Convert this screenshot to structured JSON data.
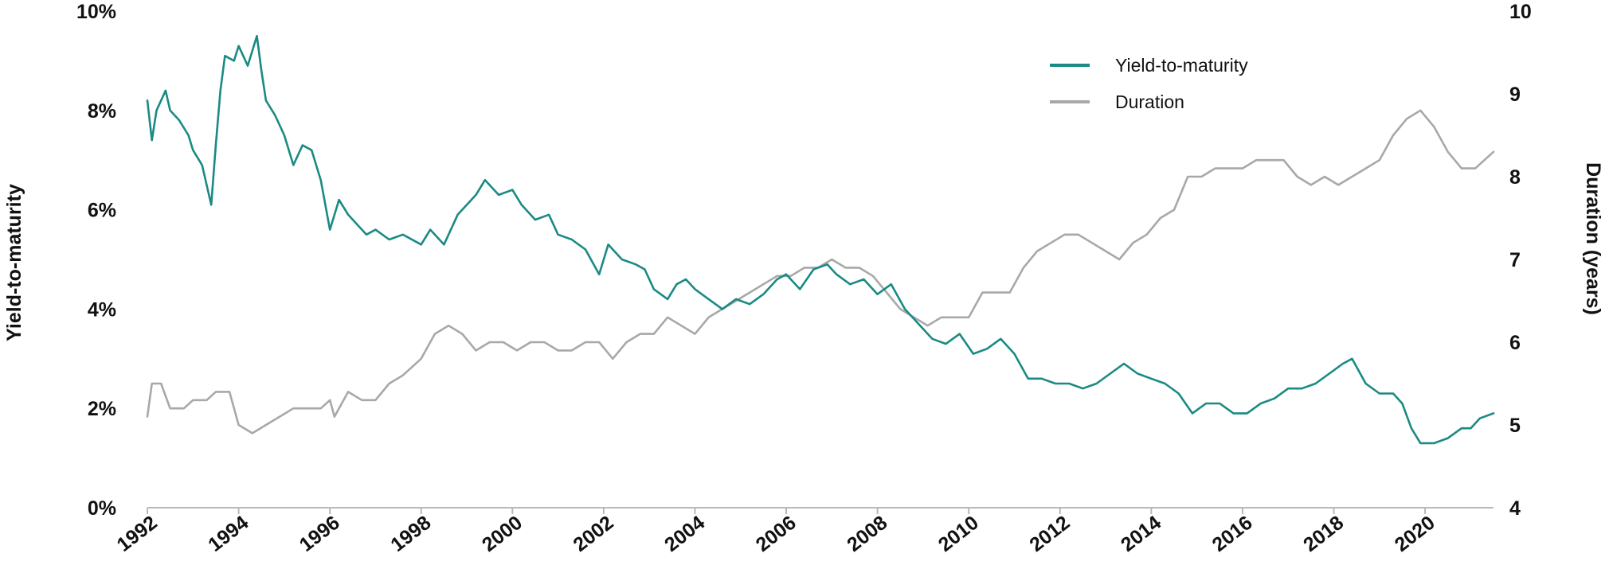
{
  "chart_data": {
    "type": "line",
    "title": "",
    "ylabel": "Yield-to-maturity",
    "y2label": "Duration (years)",
    "xlim": [
      1992,
      2021.5
    ],
    "ylim": [
      0,
      10
    ],
    "y2lim": [
      4,
      10
    ],
    "x_ticks": [
      "1992",
      "1994",
      "1996",
      "1998",
      "2000",
      "2002",
      "2004",
      "2006",
      "2008",
      "2010",
      "2012",
      "2014",
      "2016",
      "2018",
      "2020"
    ],
    "y_ticks": [
      "0%",
      "2%",
      "4%",
      "6%",
      "8%",
      "10%"
    ],
    "y2_ticks": [
      "4",
      "5",
      "6",
      "7",
      "8",
      "9",
      "10"
    ],
    "grid": false,
    "legend_position": "top-right",
    "series": [
      {
        "name": "Yield-to-maturity",
        "axis": "left",
        "color": "#1a8a84",
        "x": [
          1992.0,
          1992.1,
          1992.2,
          1992.4,
          1992.5,
          1992.7,
          1992.9,
          1993.0,
          1993.2,
          1993.4,
          1993.5,
          1993.6,
          1993.7,
          1993.9,
          1994.0,
          1994.2,
          1994.4,
          1994.5,
          1994.6,
          1994.8,
          1995.0,
          1995.2,
          1995.4,
          1995.6,
          1995.8,
          1996.0,
          1996.2,
          1996.4,
          1996.6,
          1996.8,
          1997.0,
          1997.3,
          1997.6,
          1998.0,
          1998.2,
          1998.5,
          1998.8,
          1999.2,
          1999.4,
          1999.7,
          2000.0,
          2000.2,
          2000.5,
          2000.8,
          2001.0,
          2001.3,
          2001.6,
          2001.9,
          2002.1,
          2002.4,
          2002.7,
          2002.9,
          2003.1,
          2003.4,
          2003.6,
          2003.8,
          2004.0,
          2004.3,
          2004.6,
          2004.9,
          2005.2,
          2005.5,
          2005.8,
          2006.0,
          2006.3,
          2006.6,
          2006.9,
          2007.1,
          2007.4,
          2007.7,
          2008.0,
          2008.3,
          2008.6,
          2008.9,
          2009.2,
          2009.5,
          2009.8,
          2010.1,
          2010.4,
          2010.7,
          2011.0,
          2011.3,
          2011.6,
          2011.9,
          2012.2,
          2012.5,
          2012.8,
          2013.1,
          2013.4,
          2013.7,
          2014.0,
          2014.3,
          2014.6,
          2014.9,
          2015.2,
          2015.5,
          2015.8,
          2016.1,
          2016.4,
          2016.7,
          2017.0,
          2017.3,
          2017.6,
          2017.9,
          2018.2,
          2018.4,
          2018.7,
          2019.0,
          2019.3,
          2019.5,
          2019.7,
          2019.9,
          2020.2,
          2020.5,
          2020.8,
          2021.0,
          2021.2,
          2021.5
        ],
        "values": [
          8.2,
          7.4,
          8.0,
          8.4,
          8.0,
          7.8,
          7.5,
          7.2,
          6.9,
          6.1,
          7.3,
          8.4,
          9.1,
          9.0,
          9.3,
          8.9,
          9.5,
          8.8,
          8.2,
          7.9,
          7.5,
          6.9,
          7.3,
          7.2,
          6.6,
          5.6,
          6.2,
          5.9,
          5.7,
          5.5,
          5.6,
          5.4,
          5.5,
          5.3,
          5.6,
          5.3,
          5.9,
          6.3,
          6.6,
          6.3,
          6.4,
          6.1,
          5.8,
          5.9,
          5.5,
          5.4,
          5.2,
          4.7,
          5.3,
          5.0,
          4.9,
          4.8,
          4.4,
          4.2,
          4.5,
          4.6,
          4.4,
          4.2,
          4.0,
          4.2,
          4.1,
          4.3,
          4.6,
          4.7,
          4.4,
          4.8,
          4.9,
          4.7,
          4.5,
          4.6,
          4.3,
          4.5,
          4.0,
          3.7,
          3.4,
          3.3,
          3.5,
          3.1,
          3.2,
          3.4,
          3.1,
          2.6,
          2.6,
          2.5,
          2.5,
          2.4,
          2.5,
          2.7,
          2.9,
          2.7,
          2.6,
          2.5,
          2.3,
          1.9,
          2.1,
          2.1,
          1.9,
          1.9,
          2.1,
          2.2,
          2.4,
          2.4,
          2.5,
          2.7,
          2.9,
          3.0,
          2.5,
          2.3,
          2.3,
          2.1,
          1.6,
          1.3,
          1.3,
          1.4,
          1.6,
          1.6,
          1.8,
          1.9
        ]
      },
      {
        "name": "Duration",
        "axis": "right",
        "color": "#a8a8a8",
        "x": [
          1992.0,
          1992.1,
          1992.3,
          1992.5,
          1992.8,
          1993.0,
          1993.3,
          1993.5,
          1993.8,
          1994.0,
          1994.3,
          1994.6,
          1994.9,
          1995.2,
          1995.5,
          1995.8,
          1996.0,
          1996.1,
          1996.4,
          1996.7,
          1997.0,
          1997.3,
          1997.6,
          1998.0,
          1998.3,
          1998.6,
          1998.9,
          1999.2,
          1999.5,
          1999.8,
          2000.1,
          2000.4,
          2000.7,
          2001.0,
          2001.3,
          2001.6,
          2001.9,
          2002.2,
          2002.5,
          2002.8,
          2003.1,
          2003.4,
          2003.7,
          2004.0,
          2004.3,
          2004.6,
          2004.9,
          2005.2,
          2005.5,
          2005.8,
          2006.1,
          2006.4,
          2006.7,
          2007.0,
          2007.3,
          2007.6,
          2007.9,
          2008.2,
          2008.5,
          2008.8,
          2009.1,
          2009.4,
          2009.7,
          2010.0,
          2010.3,
          2010.6,
          2010.9,
          2011.2,
          2011.5,
          2011.8,
          2012.1,
          2012.4,
          2012.7,
          2013.0,
          2013.3,
          2013.6,
          2013.9,
          2014.2,
          2014.5,
          2014.8,
          2015.1,
          2015.4,
          2015.7,
          2016.0,
          2016.3,
          2016.6,
          2016.9,
          2017.2,
          2017.5,
          2017.8,
          2018.1,
          2018.4,
          2018.7,
          2019.0,
          2019.3,
          2019.6,
          2019.9,
          2020.2,
          2020.5,
          2020.8,
          2021.1,
          2021.5
        ],
        "values": [
          5.1,
          5.5,
          5.5,
          5.2,
          5.2,
          5.3,
          5.3,
          5.4,
          5.4,
          5.0,
          4.9,
          5.0,
          5.1,
          5.2,
          5.2,
          5.2,
          5.3,
          5.1,
          5.4,
          5.3,
          5.3,
          5.5,
          5.6,
          5.8,
          6.1,
          6.2,
          6.1,
          5.9,
          6.0,
          6.0,
          5.9,
          6.0,
          6.0,
          5.9,
          5.9,
          6.0,
          6.0,
          5.8,
          6.0,
          6.1,
          6.1,
          6.3,
          6.2,
          6.1,
          6.3,
          6.4,
          6.5,
          6.6,
          6.7,
          6.8,
          6.8,
          6.9,
          6.9,
          7.0,
          6.9,
          6.9,
          6.8,
          6.6,
          6.4,
          6.3,
          6.2,
          6.3,
          6.3,
          6.3,
          6.6,
          6.6,
          6.6,
          6.9,
          7.1,
          7.2,
          7.3,
          7.3,
          7.2,
          7.1,
          7.0,
          7.2,
          7.3,
          7.5,
          7.6,
          8.0,
          8.0,
          8.1,
          8.1,
          8.1,
          8.2,
          8.2,
          8.2,
          8.0,
          7.9,
          8.0,
          7.9,
          8.0,
          8.1,
          8.2,
          8.5,
          8.7,
          8.8,
          8.6,
          8.3,
          8.1,
          8.1,
          8.3
        ]
      }
    ]
  }
}
